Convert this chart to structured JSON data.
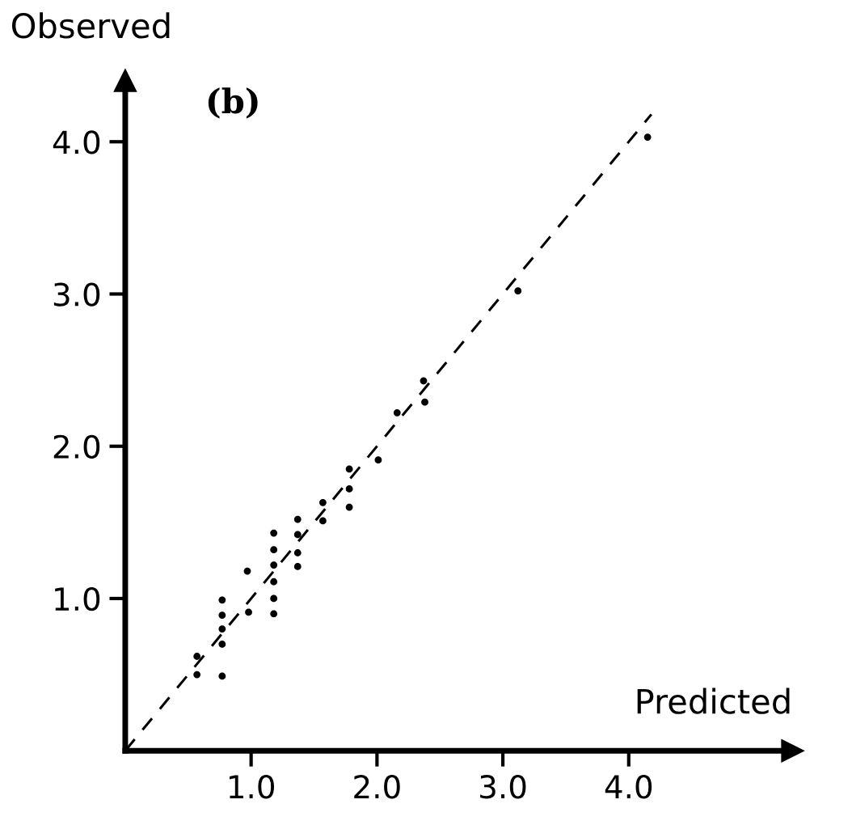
{
  "chart_data": {
    "type": "scatter",
    "xlabel": "Predicted",
    "ylabel": "Observed",
    "annotations": [
      "(b)"
    ],
    "xlim": [
      0,
      5.3
    ],
    "ylim": [
      0,
      4.4
    ],
    "xticks": [
      {
        "value": 1,
        "label": "1.0"
      },
      {
        "value": 2,
        "label": "2.0"
      },
      {
        "value": 3,
        "label": "3.0"
      },
      {
        "value": 4,
        "label": "4.0"
      }
    ],
    "yticks": [
      {
        "value": 1,
        "label": "1.0"
      },
      {
        "value": 2,
        "label": "2.0"
      },
      {
        "value": 3,
        "label": "3.0"
      },
      {
        "value": 4,
        "label": "4.0"
      }
    ],
    "grid": false,
    "legend": false,
    "series": [
      {
        "color": "#000000",
        "marker": "circle",
        "x": [
          0.57,
          0.57,
          0.77,
          0.77,
          0.77,
          0.77,
          0.77,
          0.97,
          0.98,
          1.18,
          1.18,
          1.18,
          1.18,
          1.18,
          1.18,
          1.37,
          1.37,
          1.37,
          1.37,
          1.57,
          1.57,
          1.78,
          1.78,
          1.78,
          2.01,
          2.16,
          2.37,
          2.38,
          3.12,
          4.15
        ],
        "values": [
          0.62,
          0.5,
          0.99,
          0.89,
          0.8,
          0.7,
          0.49,
          1.18,
          0.91,
          1.43,
          1.32,
          1.22,
          1.11,
          1.0,
          0.9,
          1.52,
          1.42,
          1.3,
          1.21,
          1.63,
          1.51,
          1.85,
          1.72,
          1.6,
          1.91,
          2.22,
          2.43,
          2.29,
          3.02,
          4.03
        ]
      },
      {
        "type": "line",
        "color": "#000000",
        "line_style": "dashed",
        "marker": "none",
        "x": [
          0,
          4.18
        ],
        "values": [
          0,
          4.18
        ]
      }
    ]
  }
}
